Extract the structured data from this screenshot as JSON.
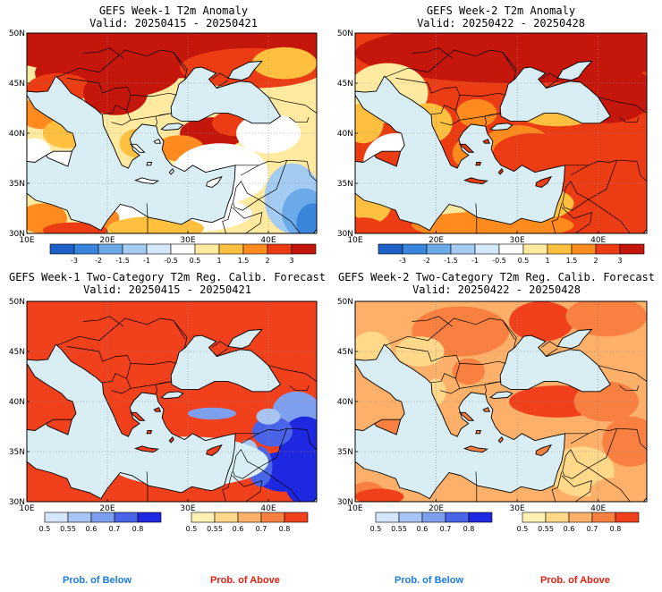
{
  "panels": [
    {
      "title": "GEFS Week-1 T2m Anomaly",
      "valid": "Valid: 20250415 - 20250421"
    },
    {
      "title": "GEFS Week-2 T2m Anomaly",
      "valid": "Valid: 20250422 - 20250428"
    },
    {
      "title": "GEFS Week-1 Two-Category T2m Reg. Calib. Forecast",
      "valid": "Valid: 20250415 - 20250421"
    },
    {
      "title": "GEFS Week-2 Two-Category T2m Reg. Calib. Forecast",
      "valid": "Valid: 20250422 - 20250428"
    }
  ],
  "map": {
    "lat_labels": [
      "50N",
      "45N",
      "40N",
      "35N",
      "30N"
    ],
    "lon_labels": [
      "10E",
      "20E",
      "30E",
      "40E"
    ]
  },
  "anomaly_colorbar": {
    "labels": [
      "-3",
      "-2",
      "-1.5",
      "-1",
      "-0.5",
      "0.5",
      "1",
      "1.5",
      "2",
      "3"
    ],
    "colors": [
      "#1c60c8",
      "#3a86dc",
      "#6aaae8",
      "#a4ccf2",
      "#d4e8fa",
      "#ffffff",
      "#ffeaa0",
      "#ffc040",
      "#ff8a1e",
      "#ec3c14",
      "#c4160a"
    ]
  },
  "prob_below_colorbar": {
    "labels": [
      "0.5",
      "0.55",
      "0.6",
      "0.7",
      "0.8"
    ],
    "colors": [
      "#d6e6fa",
      "#a8c4f2",
      "#7e9eee",
      "#4a64e8",
      "#1e28e0"
    ]
  },
  "prob_above_colorbar": {
    "labels": [
      "0.5",
      "0.55",
      "0.6",
      "0.7",
      "0.8"
    ],
    "colors": [
      "#fff0b4",
      "#ffd88a",
      "#fcb06a",
      "#f88040",
      "#f0401c"
    ]
  },
  "footer": {
    "below_label": "Prob. of Below",
    "above_label": "Prob. of Above",
    "below_color": "#1a7ae0",
    "above_color": "#e02010"
  },
  "colors": {
    "sea": "#d8eef4",
    "land_neutral": "#ffffff"
  }
}
